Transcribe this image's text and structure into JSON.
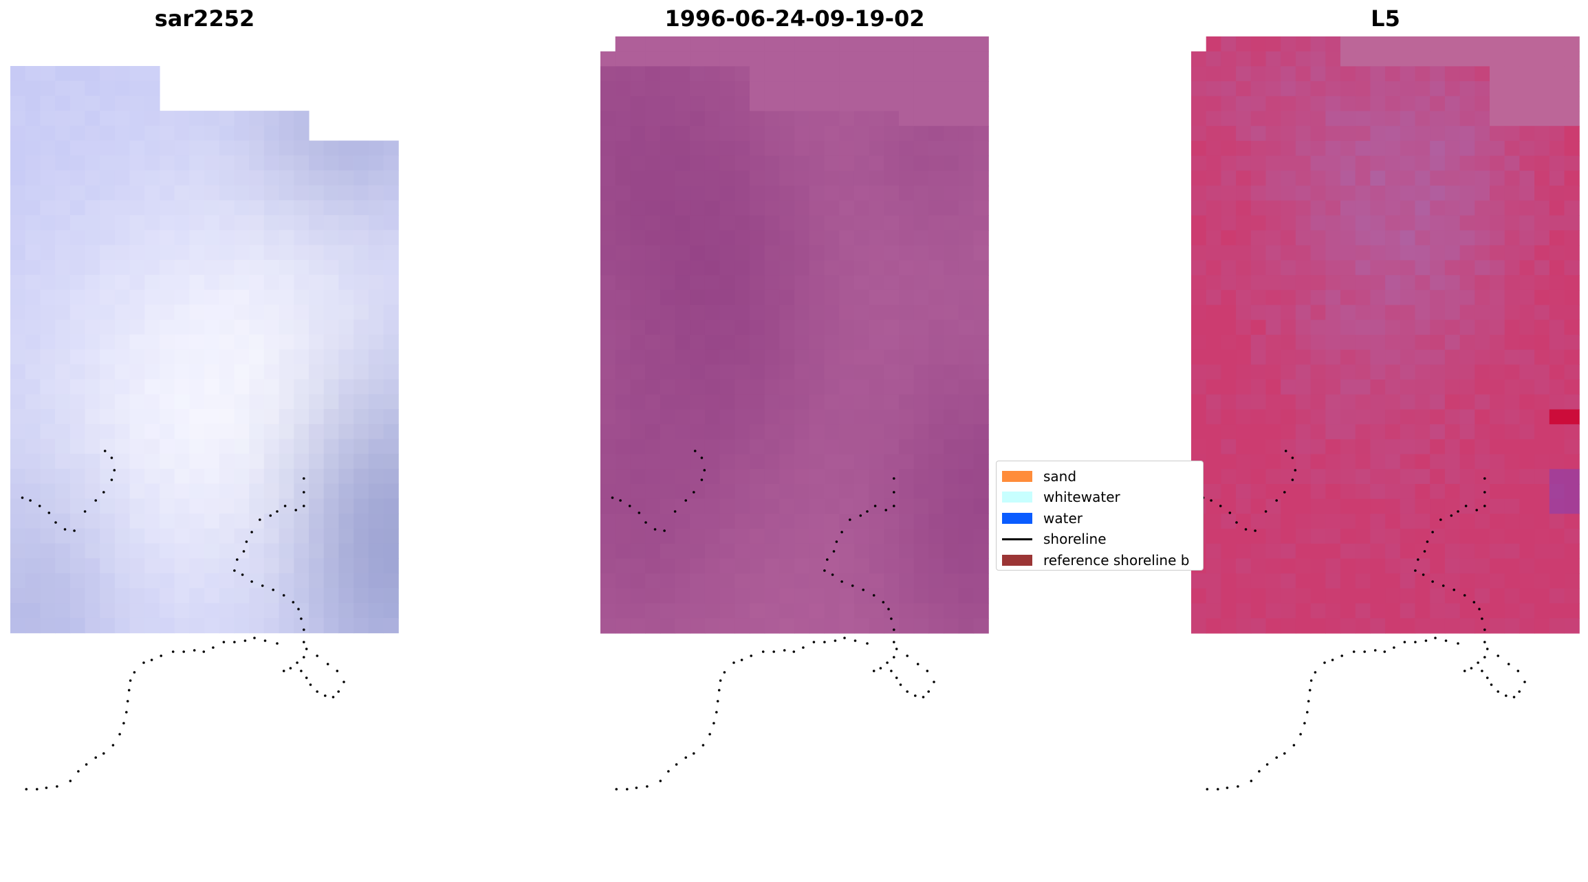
{
  "panels": [
    {
      "id": "sar",
      "title": "sar2252"
    },
    {
      "id": "rgb",
      "title": "1996-06-24-09-19-02"
    },
    {
      "id": "l5",
      "title": "L5"
    }
  ],
  "legend": {
    "items": [
      {
        "label": "sand",
        "kind": "patch",
        "color": "#ff8c3a"
      },
      {
        "label": "whitewater",
        "kind": "patch",
        "color": "#c8ffff"
      },
      {
        "label": "water",
        "kind": "patch",
        "color": "#0a5cff"
      },
      {
        "label": "shoreline",
        "kind": "line",
        "color": "#000000"
      },
      {
        "label": "reference shoreline b",
        "kind": "patch",
        "color": "#9b3535"
      }
    ]
  },
  "colors": {
    "sar_base": "#b8bcf2",
    "sar_light": "#f8f8ff",
    "sar_dark": "#7a82bc",
    "rgb_base": "#b0609a",
    "rgb_dark": "#8c3a80",
    "l5_base": "#cc3c70",
    "l5_purple": "#b060a0",
    "l5_deep": "#5a00aa",
    "shoreline_dots": "#000000"
  }
}
